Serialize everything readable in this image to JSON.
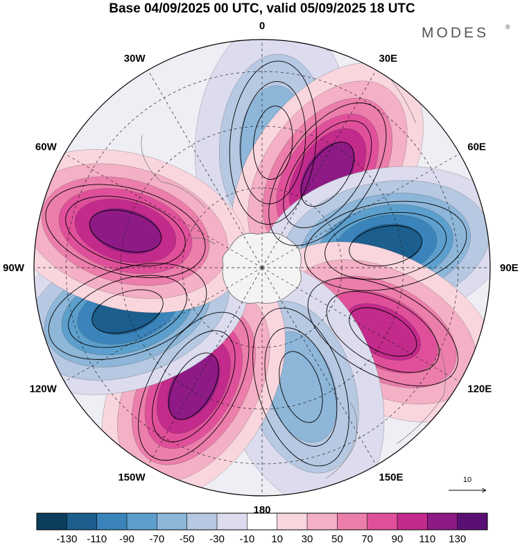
{
  "header": {
    "title": "Base 04/09/2025 00 UTC, valid 05/09/2025 18 UTC",
    "brand": "MODES",
    "brand_mark": "®"
  },
  "map": {
    "projection": "south-polar-stereographic",
    "longitude_labels": [
      "0",
      "30E",
      "60E",
      "90E",
      "120E",
      "150E",
      "180",
      "150W",
      "120W",
      "90W",
      "60W",
      "30W"
    ],
    "reference_vector_label": "10",
    "anomaly_centers": [
      {
        "name": "neg-center-0",
        "sign": "negative",
        "peak": -60,
        "lon": 5,
        "rfrac": 0.55
      },
      {
        "name": "pos-center-30e",
        "sign": "positive",
        "peak": 125,
        "lon": 35,
        "rfrac": 0.5
      },
      {
        "name": "neg-center-80e",
        "sign": "negative",
        "peak": -125,
        "lon": 80,
        "rfrac": 0.55
      },
      {
        "name": "pos-center-120e",
        "sign": "positive",
        "peak": 115,
        "lon": 118,
        "rfrac": 0.6
      },
      {
        "name": "neg-center-160e",
        "sign": "negative",
        "peak": -70,
        "lon": 162,
        "rfrac": 0.55
      },
      {
        "name": "pos-center-150w",
        "sign": "positive",
        "peak": 125,
        "lon": -150,
        "rfrac": 0.6
      },
      {
        "name": "neg-center-110w",
        "sign": "negative",
        "peak": -135,
        "lon": -108,
        "rfrac": 0.62
      },
      {
        "name": "pos-center-75w",
        "sign": "positive",
        "peak": 125,
        "lon": -75,
        "rfrac": 0.62
      }
    ]
  },
  "colorbar": {
    "colors": [
      "#0d3e5c",
      "#1c5f8f",
      "#3a84bb",
      "#5c9fcc",
      "#8db6d9",
      "#b7c8e2",
      "#dcdcee",
      "#ffffff",
      "#f9d6de",
      "#f4b0c6",
      "#ec7eab",
      "#e0509a",
      "#c22a8b",
      "#8e1a86",
      "#5a0f74"
    ],
    "tick_labels": [
      "-130",
      "-110",
      "-90",
      "-70",
      "-50",
      "-30",
      "-10",
      "10",
      "30",
      "50",
      "70",
      "90",
      "110",
      "130"
    ]
  }
}
